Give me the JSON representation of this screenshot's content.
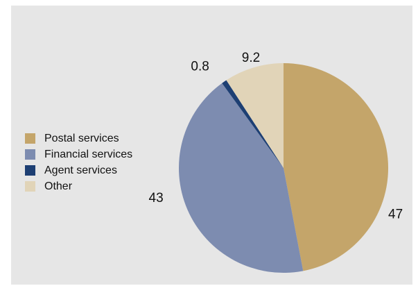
{
  "chart_data": {
    "type": "pie",
    "title": "",
    "categories": [
      "Postal services",
      "Financial services",
      "Agent services",
      "Other"
    ],
    "values": [
      47,
      43,
      0.8,
      9.2
    ],
    "value_labels": [
      "47",
      "43",
      "0.8",
      "9.2"
    ],
    "colors": [
      "#c4a56a",
      "#7d8cb0",
      "#1d3f73",
      "#e1d4b8"
    ],
    "start_angle": "12 o'clock",
    "direction": "clockwise",
    "legend_position": "left"
  },
  "legend": {
    "items": [
      {
        "label": "Postal services",
        "color": "#c4a56a"
      },
      {
        "label": "Financial services",
        "color": "#7d8cb0"
      },
      {
        "label": "Agent services",
        "color": "#1d3f73"
      },
      {
        "label": "Other",
        "color": "#e1d4b8"
      }
    ]
  },
  "colors": {
    "panel_background": "#e6e6e6",
    "text": "#111111"
  }
}
